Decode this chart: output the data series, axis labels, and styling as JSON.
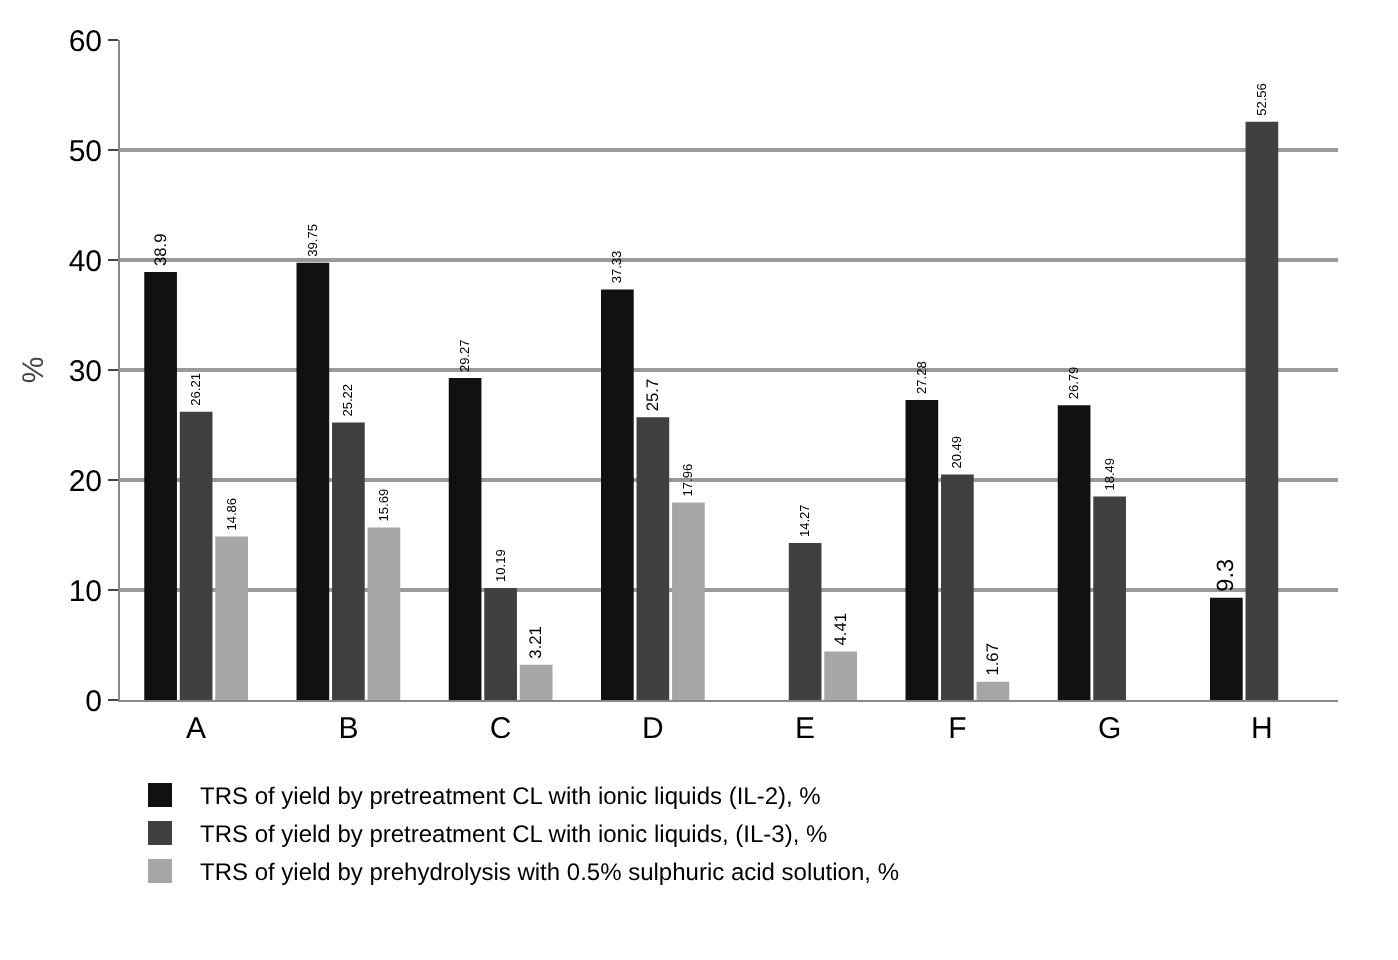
{
  "chart_data": {
    "type": "bar",
    "categories": [
      "A",
      "B",
      "C",
      "D",
      "E",
      "F",
      "G",
      "H"
    ],
    "series": [
      {
        "name": "TRS of yield by pretreatment CL with ionic liquids (IL-2), %",
        "color": "#111111",
        "values": [
          38.9,
          39.75,
          29.27,
          37.33,
          null,
          27.28,
          26.79,
          9.3
        ]
      },
      {
        "name": "TRS of yield by pretreatment CL with ionic liquids, (IL-3), %",
        "color": "#404040",
        "values": [
          26.21,
          25.22,
          10.19,
          25.7,
          14.27,
          20.49,
          18.49,
          52.56
        ]
      },
      {
        "name": "TRS of yield by prehydrolysis with 0.5% sulphuric acid solution, %",
        "color": "#a6a6a6",
        "values": [
          14.86,
          15.69,
          3.21,
          17.96,
          4.41,
          1.67,
          null,
          null
        ]
      }
    ],
    "ylabel": "%",
    "ylim": [
      0,
      60
    ],
    "yticks": [
      0,
      10,
      20,
      30,
      40,
      50,
      60
    ],
    "grid": "y",
    "legend": "bottom",
    "data_labels": true
  }
}
